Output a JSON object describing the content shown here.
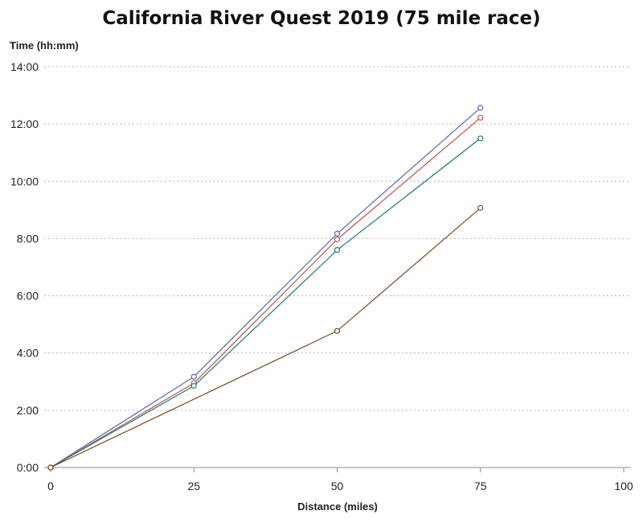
{
  "chart_data": {
    "type": "line",
    "title": "California River Quest 2019 (75 mile race)",
    "xlabel": "Distance (miles)",
    "ylabel": "Time (hh:mm)",
    "xlim": [
      0,
      100
    ],
    "ylim": [
      0,
      14
    ],
    "x_ticks": [
      0,
      25,
      50,
      75,
      100
    ],
    "x_tick_labels": [
      "0",
      "25",
      "50",
      "75",
      "100"
    ],
    "y_ticks": [
      0,
      2,
      4,
      6,
      8,
      10,
      12,
      14
    ],
    "y_tick_labels": [
      "0:00",
      "2:00",
      "4:00",
      "6:00",
      "8:00",
      "10:00",
      "12:00",
      "14:00"
    ],
    "grid": "horizontal dotted",
    "x": [
      0,
      25,
      50,
      75
    ],
    "series": [
      {
        "color": "#5a67b0",
        "values": [
          0,
          3.17,
          8.17,
          12.57
        ]
      },
      {
        "color": "#c0504d",
        "values": [
          0,
          2.95,
          7.97,
          12.22
        ]
      },
      {
        "color": "#1f7a73",
        "values": [
          0,
          2.85,
          7.6,
          11.5
        ]
      },
      {
        "color": "#7a4a1f",
        "values": [
          0,
          null,
          4.77,
          9.07
        ]
      }
    ]
  }
}
